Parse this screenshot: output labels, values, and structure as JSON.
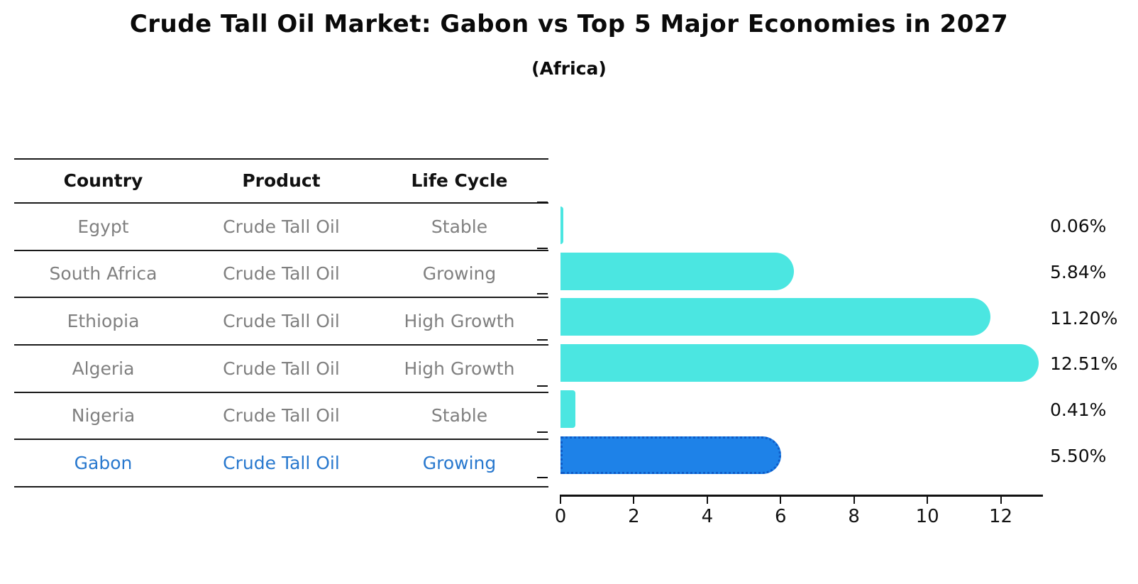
{
  "title": "Crude Tall Oil Market: Gabon vs Top 5 Major Economies in 2027",
  "subtitle": "(Africa)",
  "table": {
    "headers": [
      "Country",
      "Product",
      "Life Cycle"
    ],
    "rows": [
      {
        "country": "Egypt",
        "product": "Crude Tall Oil",
        "life_cycle": "Stable",
        "highlight": false
      },
      {
        "country": "South Africa",
        "product": "Crude Tall Oil",
        "life_cycle": "Growing",
        "highlight": false
      },
      {
        "country": "Ethiopia",
        "product": "Crude Tall Oil",
        "life_cycle": "High Growth",
        "highlight": false
      },
      {
        "country": "Algeria",
        "product": "Crude Tall Oil",
        "life_cycle": "High Growth",
        "highlight": false
      },
      {
        "country": "Nigeria",
        "product": "Crude Tall Oil",
        "life_cycle": "Stable",
        "highlight": false
      },
      {
        "country": "Gabon",
        "product": "Crude Tall Oil",
        "life_cycle": "Growing",
        "highlight": true
      }
    ]
  },
  "chart_data": {
    "type": "bar",
    "orientation": "horizontal",
    "title": "Crude Tall Oil Market: Gabon vs Top 5 Major Economies in 2027",
    "subtitle": "(Africa)",
    "categories": [
      "Egypt",
      "South Africa",
      "Ethiopia",
      "Algeria",
      "Nigeria",
      "Gabon"
    ],
    "values": [
      0.06,
      5.84,
      11.2,
      12.51,
      0.41,
      5.5
    ],
    "value_labels": [
      "0.06%",
      "5.84%",
      "11.20%",
      "12.51%",
      "0.41%",
      "5.50%"
    ],
    "xticks": [
      0,
      2,
      4,
      6,
      8,
      10,
      12
    ],
    "xlim": [
      0,
      13.15
    ],
    "grid": false,
    "legend": "none",
    "highlight_index": 5,
    "colors": {
      "bar": "#4be6e1",
      "highlight_bar": "#1e82e8",
      "highlight_bar_edge": "#0f5cc8",
      "highlight_text": "#2878ce",
      "table_text": "#808080",
      "header_text": "#111111",
      "axis": "#111111"
    }
  }
}
